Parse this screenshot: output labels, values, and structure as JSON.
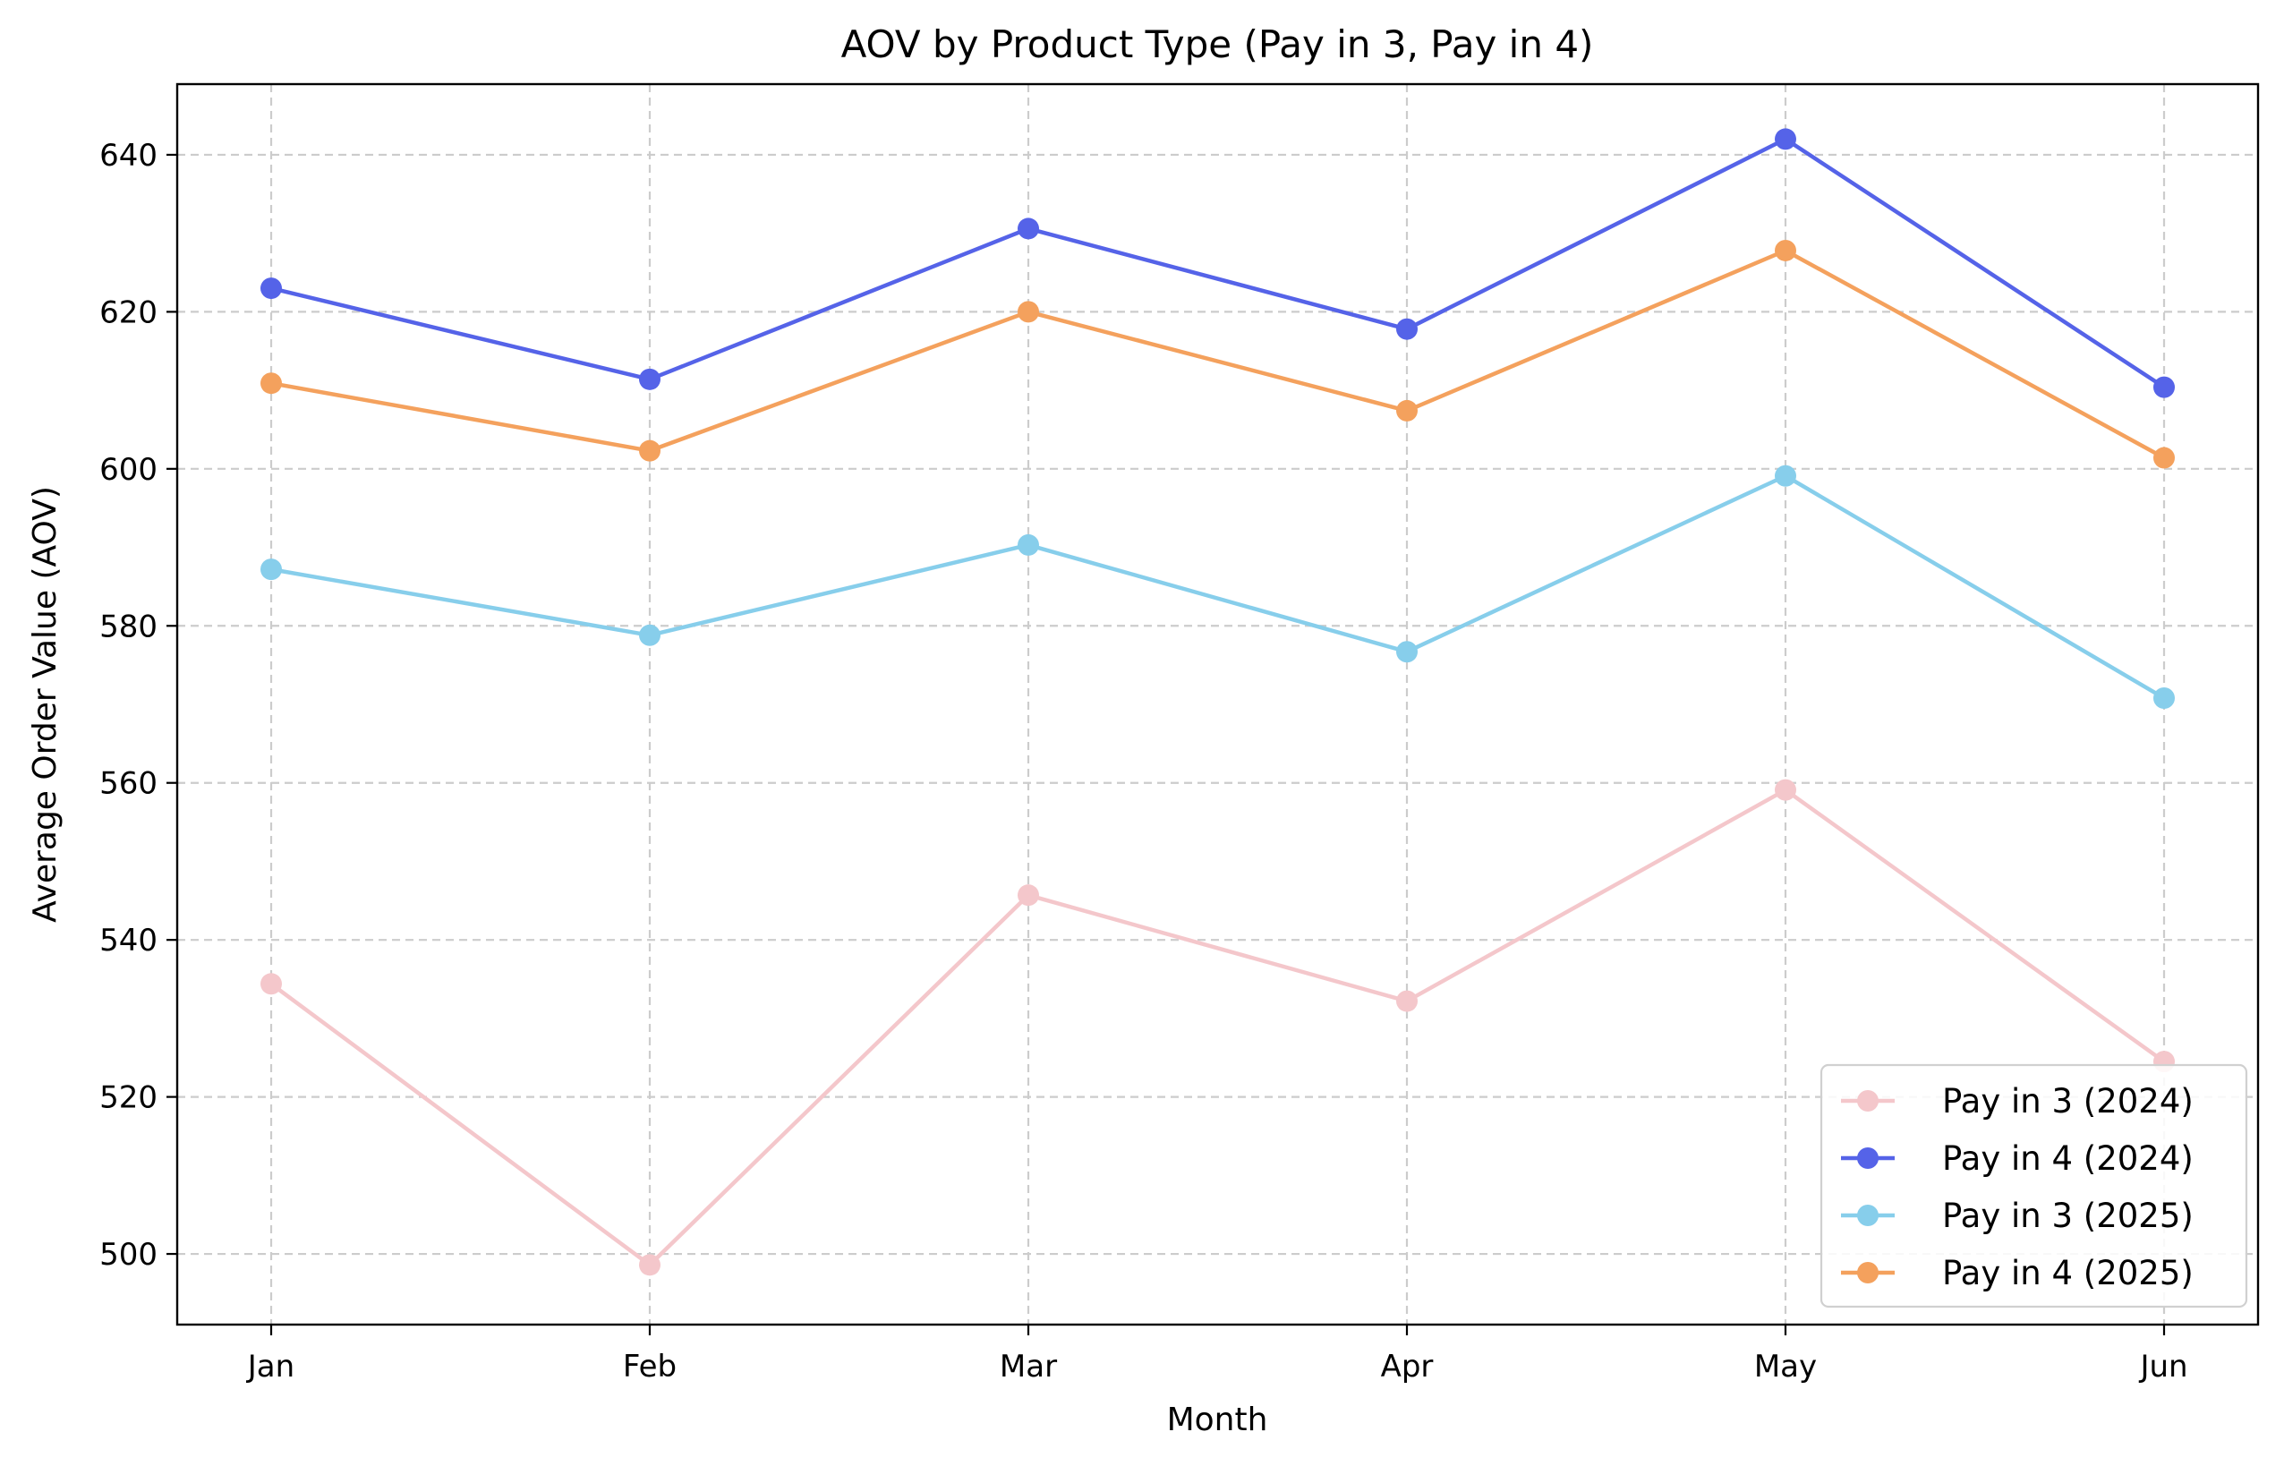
{
  "chart_data": {
    "type": "line",
    "title": "AOV by Product Type (Pay in 3, Pay in 4)",
    "xlabel": "Month",
    "ylabel": "Average Order Value (AOV)",
    "categories": [
      "Jan",
      "Feb",
      "Mar",
      "Apr",
      "May",
      "Jun"
    ],
    "ylim": [
      491,
      649
    ],
    "yticks": [
      500,
      520,
      540,
      560,
      580,
      600,
      620,
      640
    ],
    "grid": true,
    "legend_position": "bottom-right",
    "series": [
      {
        "name": "Pay in 3 (2024)",
        "color": "#f4c7cb",
        "values": [
          534.4,
          498.6,
          545.7,
          532.2,
          559.1,
          524.5
        ]
      },
      {
        "name": "Pay in 4 (2024)",
        "color": "#5563e8",
        "values": [
          623.0,
          611.4,
          630.6,
          617.8,
          642.0,
          610.4
        ]
      },
      {
        "name": "Pay in 3 (2025)",
        "color": "#87ceeb",
        "values": [
          587.2,
          578.8,
          590.3,
          576.7,
          599.1,
          570.8
        ]
      },
      {
        "name": "Pay in 4 (2025)",
        "color": "#f4a15d",
        "values": [
          610.9,
          602.3,
          620.0,
          607.4,
          627.8,
          601.4
        ]
      }
    ]
  }
}
